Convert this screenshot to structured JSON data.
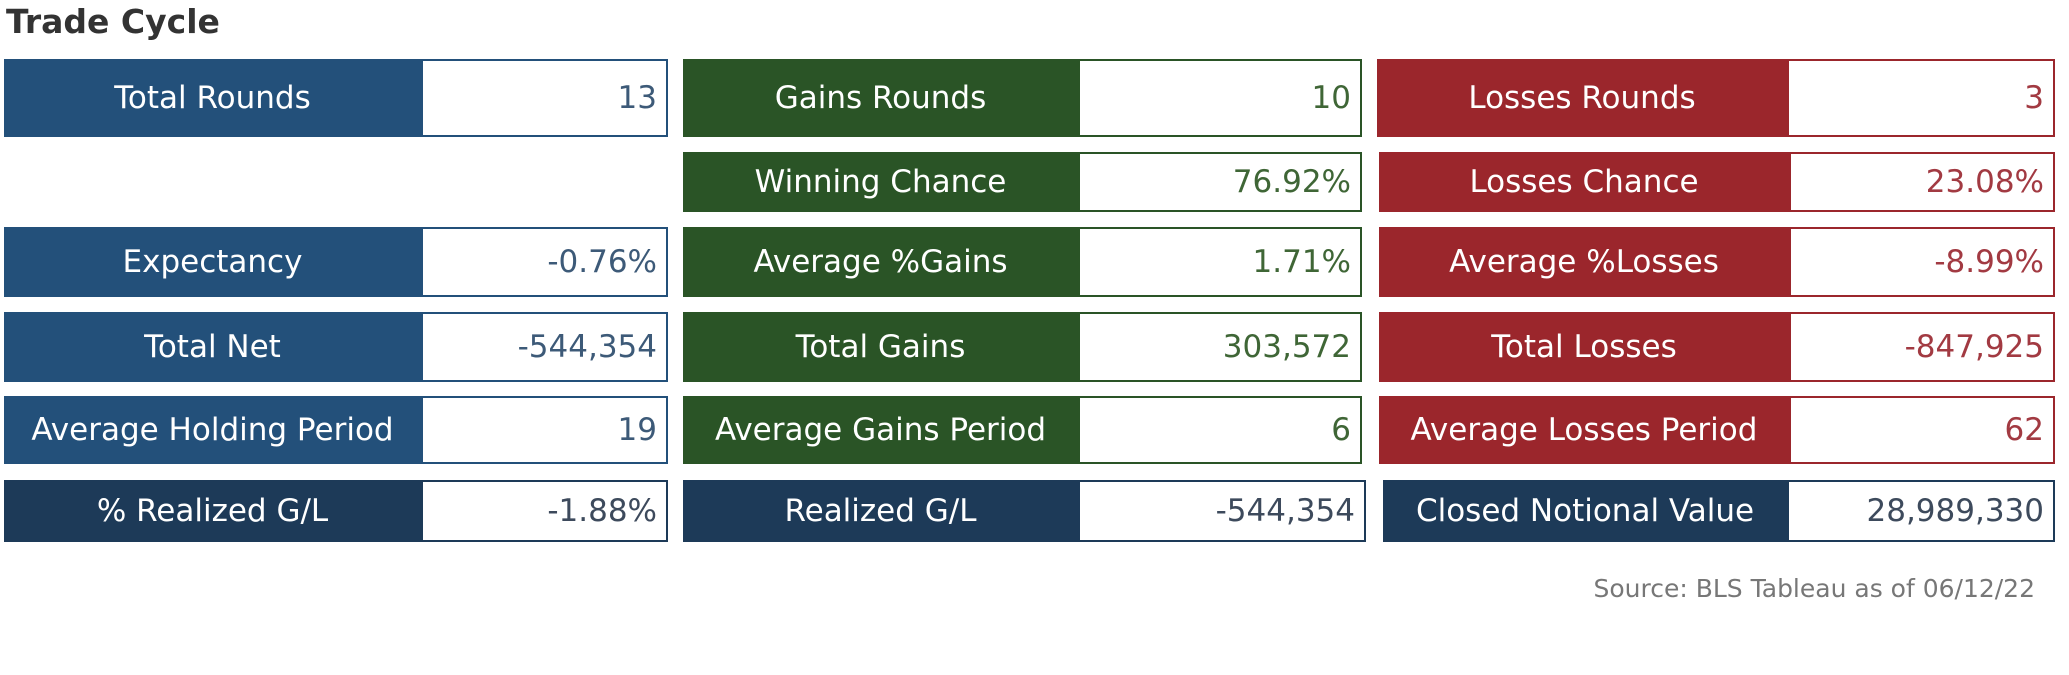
{
  "title": "Trade Cycle",
  "source": "Source: BLS Tableau as of 06/12/22",
  "colors": {
    "blue": "#23507a",
    "green": "#2a5426",
    "red": "#9b262c",
    "navy": "#1d3a58"
  },
  "rows": [
    {
      "left": {
        "label": "Total Rounds",
        "value": "13"
      },
      "middle": {
        "label": "Gains Rounds",
        "value": "10"
      },
      "right": {
        "label": "Losses Rounds",
        "value": "3"
      }
    },
    {
      "middle": {
        "label": "Winning Chance",
        "value": "76.92%"
      },
      "right": {
        "label": "Losses Chance",
        "value": "23.08%"
      }
    },
    {
      "left": {
        "label": "Expectancy",
        "value": "-0.76%"
      },
      "middle": {
        "label": "Average %Gains",
        "value": "1.71%"
      },
      "right": {
        "label": "Average %Losses",
        "value": "-8.99%"
      }
    },
    {
      "left": {
        "label": "Total Net",
        "value": "-544,354"
      },
      "middle": {
        "label": "Total Gains",
        "value": "303,572"
      },
      "right": {
        "label": "Total Losses",
        "value": "-847,925"
      }
    },
    {
      "left": {
        "label": "Average Holding Period",
        "value": "19"
      },
      "middle": {
        "label": "Average Gains Period",
        "value": "6"
      },
      "right": {
        "label": "Average Losses Period",
        "value": "62"
      }
    },
    {
      "left": {
        "label": "% Realized G/L",
        "value": "-1.88%"
      },
      "middle": {
        "label": "Realized G/L",
        "value": "-544,354"
      },
      "right": {
        "label": "Closed Notional Value",
        "value": "28,989,330"
      }
    }
  ]
}
